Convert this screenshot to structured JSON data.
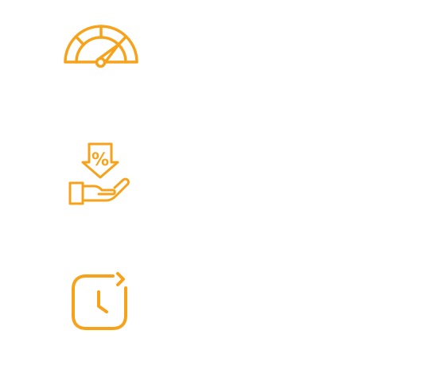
{
  "theme": {
    "accent_color": "#F7A21B",
    "background_color": "#FFFFFF"
  },
  "icons": [
    {
      "name": "speedometer-icon"
    },
    {
      "name": "percent-discount-hand-icon",
      "symbol": "%"
    },
    {
      "name": "clock-refresh-icon"
    }
  ]
}
